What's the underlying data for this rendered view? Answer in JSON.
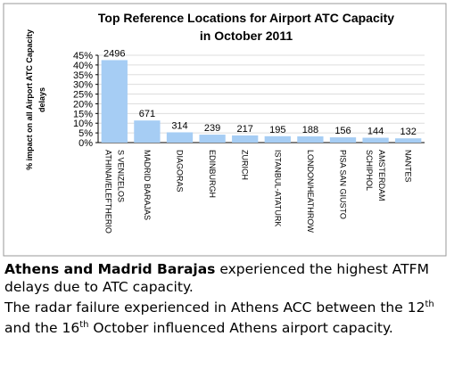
{
  "chart_data": {
    "type": "bar",
    "title": [
      "Top Reference Locations for Airport ATC Capacity",
      "in October 2011"
    ],
    "y_label": [
      "% impact on all Airport ATC Capacity",
      "delays"
    ],
    "categories": [
      [
        "ATHINAI/ELEFTHERIO",
        "S VENIZELOS"
      ],
      "MADRID BARAJAS",
      "DIAGORAS",
      "EDINBURGH",
      "ZURICH",
      "ISTANBUL-ATATURK",
      "LONDON/HEATHROW",
      "PISA SAN GIUSTO",
      [
        "SCHIPHOL",
        "AMSTERDAM"
      ],
      "NANTES"
    ],
    "values": [
      42.5,
      11.4,
      5.3,
      4.1,
      3.7,
      3.3,
      3.2,
      2.7,
      2.5,
      2.2
    ],
    "counts": [
      2496,
      671,
      314,
      239,
      217,
      195,
      188,
      156,
      144,
      132
    ],
    "color": "#a6cdf4",
    "ylim": [
      0,
      45
    ],
    "yticks": [
      {
        "value": 0,
        "label": "0%"
      },
      {
        "value": 5,
        "label": "5%"
      },
      {
        "value": 10,
        "label": "10%"
      },
      {
        "value": 15,
        "label": "15%"
      },
      {
        "value": 20,
        "label": "20%"
      },
      {
        "value": 25,
        "label": "25%"
      },
      {
        "value": 30,
        "label": "30%"
      },
      {
        "value": 35,
        "label": "35%"
      },
      {
        "value": 40,
        "label": "40%"
      },
      {
        "value": 45,
        "label": "45%"
      }
    ],
    "grid": true
  },
  "caption": {
    "bold": "Athens and Madrid Barajas",
    "line1": " experienced the highest ATFM delays due to ATC capacity.",
    "line2a": "The radar failure experienced in Athens ACC between the ",
    "day1": "12",
    "sup1": "th",
    "line2b": " and the ",
    "day2": "16",
    "sup2": "th",
    "line2c": " October influenced Athens airport capacity."
  }
}
